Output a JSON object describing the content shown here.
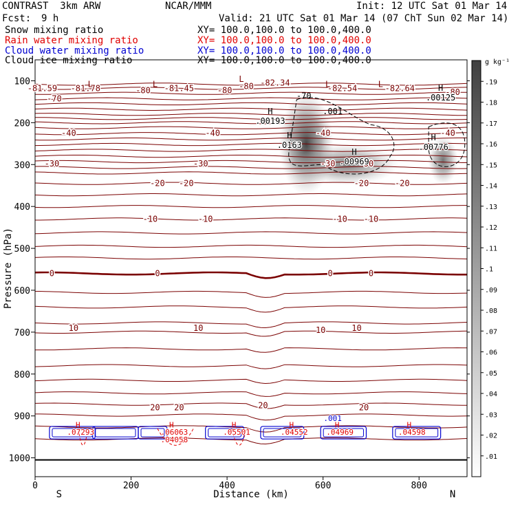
{
  "header": {
    "title": "CONTRAST  3km ARW",
    "org": "NCAR/MMM",
    "init": "Init: 12 UTC Sat 01 Mar 14",
    "fcst_label": "Fcst:",
    "fcst_value": "9 h",
    "valid": "Valid: 21 UTC Sat 01 Mar 14 (07 ChT Sun 02 Mar 14)"
  },
  "legend": [
    {
      "name": "Snow mixing ratio",
      "xy": "XY= 100.0,100.0 to 100.0,400.0",
      "color": "#000000"
    },
    {
      "name": "Rain water mixing ratio",
      "xy": "XY= 100.0,100.0 to 100.0,400.0",
      "color": "#e00000"
    },
    {
      "name": "Cloud water mixing ratio",
      "xy": "XY= 100.0,100.0 to 100.0,400.0",
      "color": "#0000d0"
    },
    {
      "name": "Cloud ice mixing ratio",
      "xy": "XY= 100.0,100.0 to 100.0,400.0",
      "color": "#000000"
    }
  ],
  "chart_data": {
    "type": "heatmap",
    "xlabel": "Distance (km)",
    "ylabel": "Pressure (hPa)",
    "xlim": [
      0,
      900
    ],
    "ylim": [
      50,
      1045
    ],
    "x_ticks": [
      0,
      200,
      400,
      600,
      800
    ],
    "y_ticks": [
      100,
      200,
      300,
      400,
      500,
      600,
      700,
      800,
      900,
      1000
    ],
    "orientation_labels": {
      "left": "S",
      "right": "N"
    },
    "colorbar": {
      "unit": "g kg⁻¹",
      "levels": [
        ".19",
        ".18",
        ".17",
        ".16",
        ".15",
        ".14",
        ".13",
        ".12",
        ".11",
        ".1",
        ".09",
        ".08",
        ".07",
        ".06",
        ".05",
        ".04",
        ".03",
        ".02",
        ".01"
      ]
    },
    "temperature_contours": {
      "color": "#7a0000",
      "levels_c": [
        -80,
        -70,
        -60,
        -50,
        -40,
        -30,
        -20,
        -10,
        0,
        10,
        20
      ],
      "labels": [
        "-81.59",
        "-81.78",
        "-80",
        "-81.45",
        "-80",
        "-80",
        "-82.34",
        "-82.54",
        "-82.64",
        "-80",
        "-70",
        "-40",
        "-40",
        "-40",
        "-40",
        "-30",
        "-30",
        "-30",
        "-30",
        "-20",
        "-20",
        "-20",
        "-20",
        "-10",
        "-10",
        "-10",
        "-10",
        "0",
        "0",
        "0",
        "0",
        "10",
        "10",
        "10",
        "10",
        "20",
        "20",
        "20",
        "20"
      ]
    },
    "snow_maxima": [
      {
        "x_km": 490,
        "p_hpa": 193,
        "value": ".00193"
      },
      {
        "x_km": 530,
        "p_hpa": 250,
        "value": ".0163"
      },
      {
        "x_km": 665,
        "p_hpa": 290,
        "value": ".00969"
      },
      {
        "x_km": 830,
        "p_hpa": 255,
        "value": ".00776"
      },
      {
        "x_km": 845,
        "p_hpa": 137,
        "value": ".00125"
      }
    ],
    "cloud_ice_labels": [
      ".001",
      "-70"
    ],
    "low_level_labels": [
      {
        "x_km": 95,
        "text": ".07293",
        "color": "red"
      },
      {
        "x_km": 290,
        "text": ".06063",
        "color": "red"
      },
      {
        "x_km": 290,
        "text": ".04058",
        "color": "red"
      },
      {
        "x_km": 420,
        "text": ".05501",
        "color": "red"
      },
      {
        "x_km": 540,
        "text": ".04552",
        "color": "red"
      },
      {
        "x_km": 635,
        "text": ".04969",
        "color": "red"
      },
      {
        "x_km": 785,
        "text": ".04598",
        "color": "red"
      },
      {
        "x_km": 620,
        "text": ".001",
        "color": "blue"
      }
    ]
  }
}
